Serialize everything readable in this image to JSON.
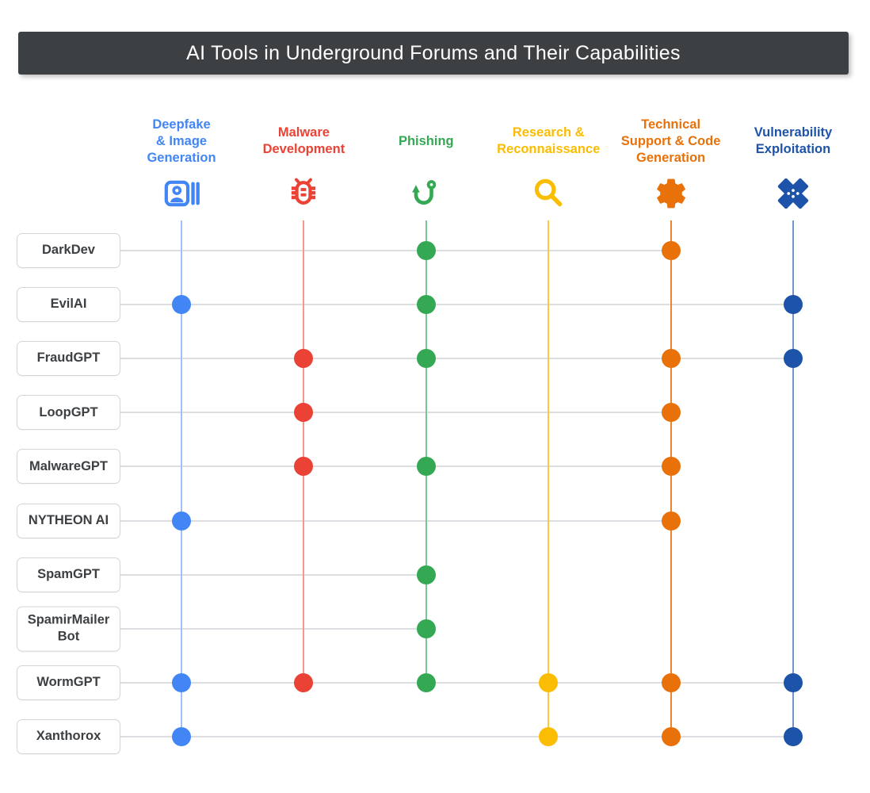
{
  "title": "AI Tools in Underground Forums and Their Capabilities",
  "colors": {
    "title_bar_bg": "#3c4043",
    "title_text": "#ffffff",
    "row_line": "#dcdee1",
    "tool_label": "#3c4043",
    "tool_box_border": "#d2d5da"
  },
  "chart_data": {
    "type": "matrix",
    "title": "AI Tools in Underground Forums and Their Capabilities",
    "legend_position": "none",
    "grid": "dot-matrix",
    "columns": [
      {
        "id": "deepfake",
        "label": "Deepfake & Image Generation",
        "lines": [
          "Deepfake",
          "& Image",
          "Generation"
        ],
        "icon": "portrait-bars-icon",
        "color": "#4285F4",
        "line_color": "#9ec2f8"
      },
      {
        "id": "malware",
        "label": "Malware Development",
        "lines": [
          "Malware",
          "Development"
        ],
        "icon": "bug-icon",
        "color": "#EA4335",
        "line_color": "#f4978f"
      },
      {
        "id": "phishing",
        "label": "Phishing",
        "lines": [
          "Phishing"
        ],
        "icon": "hook-icon",
        "color": "#34A853",
        "line_color": "#7cc495"
      },
      {
        "id": "research",
        "label": "Research & Reconnaissance",
        "lines": [
          "Research &",
          "Reconnaissance"
        ],
        "icon": "search-icon",
        "color": "#FBBC04",
        "line_color": "#fbc93e"
      },
      {
        "id": "techsupport",
        "label": "Technical Support & Code Generation",
        "lines": [
          "Technical",
          "Support & Code",
          "Generation"
        ],
        "icon": "gear-icon",
        "color": "#E8710A",
        "line_color": "#ec8430"
      },
      {
        "id": "vulnerability",
        "label": "Vulnerability Exploitation",
        "lines": [
          "Vulnerability",
          "Exploitation"
        ],
        "icon": "bandage-icon",
        "color": "#1D53A8",
        "line_color": "#7493c9"
      }
    ],
    "rows": [
      {
        "tool": "DarkDev",
        "values": [
          0,
          0,
          1,
          0,
          1,
          0
        ]
      },
      {
        "tool": "EvilAI",
        "values": [
          1,
          0,
          1,
          0,
          0,
          1
        ]
      },
      {
        "tool": "FraudGPT",
        "values": [
          0,
          1,
          1,
          0,
          1,
          1
        ]
      },
      {
        "tool": "LoopGPT",
        "values": [
          0,
          1,
          0,
          0,
          1,
          0
        ]
      },
      {
        "tool": "MalwareGPT",
        "values": [
          0,
          1,
          1,
          0,
          1,
          0
        ]
      },
      {
        "tool": "NYTHEON AI",
        "values": [
          1,
          0,
          0,
          0,
          1,
          0
        ]
      },
      {
        "tool": "SpamGPT",
        "values": [
          0,
          0,
          1,
          0,
          0,
          0
        ]
      },
      {
        "tool": "SpamirMailer Bot",
        "values": [
          0,
          0,
          1,
          0,
          0,
          0
        ]
      },
      {
        "tool": "WormGPT",
        "values": [
          1,
          1,
          1,
          1,
          1,
          1
        ]
      },
      {
        "tool": "Xanthorox",
        "values": [
          1,
          0,
          0,
          1,
          1,
          1
        ]
      }
    ]
  }
}
